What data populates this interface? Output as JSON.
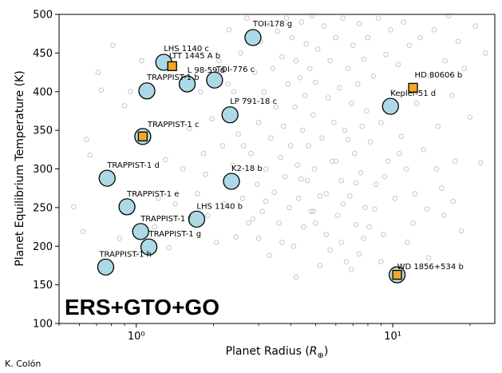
{
  "chart_data": {
    "type": "scatter",
    "title": "",
    "xlabel": "Planet Radius (R⊕)",
    "ylabel": "Planet Equilibrium Temperature (K)",
    "x_scale": "log",
    "xlim": [
      0.5,
      25
    ],
    "ylim": [
      100,
      500
    ],
    "x_ticks": [
      1,
      10
    ],
    "x_tick_labels": [
      "10⁰",
      "10¹"
    ],
    "y_ticks": [
      100,
      150,
      200,
      250,
      300,
      350,
      400,
      450,
      500
    ],
    "y_tick_labels": [
      "100",
      "150",
      "200",
      "250",
      "300",
      "350",
      "400",
      "450",
      "500"
    ],
    "grid": false,
    "overlay_label": "ERS+GTO+GO",
    "credit": "K. Colón",
    "colors": {
      "circle_fill": "#add8e6",
      "square_fill": "#f5a623",
      "background_points": "#c8c8c8"
    },
    "labeled_planets": [
      {
        "name": "TOI-178 g",
        "x": 2.85,
        "y": 470,
        "marker": "circle"
      },
      {
        "name": "LHS 1140 c",
        "x": 1.28,
        "y": 438,
        "marker": "circle"
      },
      {
        "name": "LTT 1445 A b",
        "x": 1.38,
        "y": 433,
        "marker": "square"
      },
      {
        "name": "L 98-59 d",
        "x": 1.58,
        "y": 410,
        "marker": "circle"
      },
      {
        "name": "TOI-776 c",
        "x": 2.02,
        "y": 415,
        "marker": "circle"
      },
      {
        "name": "TRAPPIST-1 b",
        "x": 1.1,
        "y": 401,
        "marker": "circle"
      },
      {
        "name": "LP 791-18 c",
        "x": 2.32,
        "y": 370,
        "marker": "circle"
      },
      {
        "name": "TRAPPIST-1 c",
        "x": 1.06,
        "y": 342,
        "marker": "circle"
      },
      {
        "name": "TRAPPIST-1 c",
        "x": 1.06,
        "y": 342,
        "marker": "square"
      },
      {
        "name": "TRAPPIST-1 d",
        "x": 0.77,
        "y": 288,
        "marker": "circle"
      },
      {
        "name": "K2-18 b",
        "x": 2.35,
        "y": 284,
        "marker": "circle"
      },
      {
        "name": "TRAPPIST-1 e",
        "x": 0.92,
        "y": 251,
        "marker": "circle"
      },
      {
        "name": "LHS 1140 b",
        "x": 1.72,
        "y": 235,
        "marker": "circle"
      },
      {
        "name": "TRAPPIST-1 f",
        "x": 1.04,
        "y": 219,
        "marker": "circle"
      },
      {
        "name": "TRAPPIST-1 g",
        "x": 1.12,
        "y": 199,
        "marker": "circle"
      },
      {
        "name": "TRAPPIST-1 h",
        "x": 0.76,
        "y": 173,
        "marker": "circle"
      },
      {
        "name": "HD 80606 b",
        "x": 12.0,
        "y": 405,
        "marker": "square"
      },
      {
        "name": "Kepler-51 d",
        "x": 9.8,
        "y": 381,
        "marker": "circle"
      },
      {
        "name": "WD 1856+534 b",
        "x": 10.4,
        "y": 163,
        "marker": "circle"
      },
      {
        "name": "WD 1856+534 b",
        "x": 10.4,
        "y": 163,
        "marker": "square"
      }
    ],
    "labels": [
      {
        "text": "TOI-178 g",
        "x": 2.85,
        "y": 470,
        "dx": 0,
        "dy": -14
      },
      {
        "text": "LHS 1140 c",
        "x": 1.28,
        "y": 438,
        "dx": 0,
        "dy": -14
      },
      {
        "text": "LTT 1445 A b",
        "x": 1.38,
        "y": 433,
        "dx": -4,
        "dy": -10
      },
      {
        "text": "L 98-59 d",
        "x": 1.58,
        "y": 410,
        "dx": 0,
        "dy": -14
      },
      {
        "text": "TOI-776 c",
        "x": 2.02,
        "y": 415,
        "dx": 2,
        "dy": -10
      },
      {
        "text": "TRAPPIST-1 b",
        "x": 1.1,
        "y": 401,
        "dx": 0,
        "dy": -14
      },
      {
        "text": "LP 791-18 c",
        "x": 2.32,
        "y": 370,
        "dx": 0,
        "dy": -14
      },
      {
        "text": "TRAPPIST-1 c",
        "x": 1.06,
        "y": 342,
        "dx": 6,
        "dy": -12
      },
      {
        "text": "TRAPPIST-1 d",
        "x": 0.77,
        "y": 288,
        "dx": 0,
        "dy": -13
      },
      {
        "text": "K2-18 b",
        "x": 2.35,
        "y": 284,
        "dx": 0,
        "dy": -13
      },
      {
        "text": "TRAPPIST-1 e",
        "x": 0.92,
        "y": 251,
        "dx": 0,
        "dy": -13
      },
      {
        "text": "LHS 1140 b",
        "x": 1.72,
        "y": 235,
        "dx": 0,
        "dy": -13
      },
      {
        "text": "TRAPPIST-1 f",
        "x": 1.04,
        "y": 219,
        "dx": 0,
        "dy": -13
      },
      {
        "text": "TRAPPIST-1 g",
        "x": 1.12,
        "y": 199,
        "dx": 0,
        "dy": -13
      },
      {
        "text": "TRAPPIST-1 h",
        "x": 0.76,
        "y": 173,
        "dx": -8,
        "dy": -13
      },
      {
        "text": "HD 80606 b",
        "x": 12.0,
        "y": 405,
        "dx": 2,
        "dy": -13
      },
      {
        "text": "Kepler-51 d",
        "x": 9.8,
        "y": 381,
        "dx": 0,
        "dy": -13
      },
      {
        "text": "WD 1856+534 b",
        "x": 10.4,
        "y": 163,
        "dx": 0,
        "dy": -7
      }
    ],
    "background_points": [
      [
        0.57,
        251
      ],
      [
        0.62,
        219
      ],
      [
        0.64,
        338
      ],
      [
        0.66,
        318
      ],
      [
        0.71,
        425
      ],
      [
        0.73,
        402
      ],
      [
        0.81,
        460
      ],
      [
        0.86,
        210
      ],
      [
        0.9,
        382
      ],
      [
        0.95,
        400
      ],
      [
        1.0,
        190
      ],
      [
        1.05,
        440
      ],
      [
        1.18,
        225
      ],
      [
        1.22,
        262
      ],
      [
        1.3,
        312
      ],
      [
        1.34,
        198
      ],
      [
        1.42,
        255
      ],
      [
        1.52,
        300
      ],
      [
        1.61,
        352
      ],
      [
        1.68,
        452
      ],
      [
        1.73,
        268
      ],
      [
        1.78,
        400
      ],
      [
        1.83,
        320
      ],
      [
        1.86,
        293
      ],
      [
        1.9,
        240
      ],
      [
        1.97,
        365
      ],
      [
        2.05,
        205
      ],
      [
        2.1,
        440
      ],
      [
        2.17,
        330
      ],
      [
        2.2,
        255
      ],
      [
        2.28,
        410
      ],
      [
        2.3,
        480
      ],
      [
        2.38,
        305
      ],
      [
        2.45,
        212
      ],
      [
        2.5,
        345
      ],
      [
        2.55,
        450
      ],
      [
        2.6,
        262
      ],
      [
        2.65,
        390
      ],
      [
        2.7,
        495
      ],
      [
        2.74,
        230
      ],
      [
        2.8,
        320
      ],
      [
        2.9,
        425
      ],
      [
        2.96,
        280
      ],
      [
        3.0,
        360
      ],
      [
        3.05,
        465
      ],
      [
        3.1,
        245
      ],
      [
        3.15,
        400
      ],
      [
        3.2,
        300
      ],
      [
        3.25,
        488
      ],
      [
        3.3,
        188
      ],
      [
        3.35,
        340
      ],
      [
        3.4,
        430
      ],
      [
        3.45,
        270
      ],
      [
        3.5,
        380
      ],
      [
        3.55,
        478
      ],
      [
        3.6,
        230
      ],
      [
        3.65,
        315
      ],
      [
        3.7,
        445
      ],
      [
        3.75,
        355
      ],
      [
        3.8,
        290
      ],
      [
        3.85,
        495
      ],
      [
        3.9,
        410
      ],
      [
        3.95,
        250
      ],
      [
        4.0,
        330
      ],
      [
        4.05,
        470
      ],
      [
        4.1,
        200
      ],
      [
        4.15,
        380
      ],
      [
        4.2,
        440
      ],
      [
        4.25,
        305
      ],
      [
        4.3,
        262
      ],
      [
        4.35,
        418
      ],
      [
        4.4,
        490
      ],
      [
        4.45,
        350
      ],
      [
        4.5,
        225
      ],
      [
        4.55,
        395
      ],
      [
        4.6,
        462
      ],
      [
        4.65,
        285
      ],
      [
        4.7,
        330
      ],
      [
        4.75,
        430
      ],
      [
        4.8,
        245
      ],
      [
        4.85,
        498
      ],
      [
        4.9,
        370
      ],
      [
        4.95,
        300
      ],
      [
        5.0,
        412
      ],
      [
        5.1,
        455
      ],
      [
        5.2,
        265
      ],
      [
        5.3,
        340
      ],
      [
        5.4,
        485
      ],
      [
        5.5,
        215
      ],
      [
        5.6,
        392
      ],
      [
        5.7,
        440
      ],
      [
        5.8,
        310
      ],
      [
        5.9,
        360
      ],
      [
        6.0,
        470
      ],
      [
        6.1,
        240
      ],
      [
        6.2,
        405
      ],
      [
        6.3,
        285
      ],
      [
        6.4,
        495
      ],
      [
        6.5,
        350
      ],
      [
        6.6,
        180
      ],
      [
        6.7,
        430
      ],
      [
        6.8,
        265
      ],
      [
        6.9,
        385
      ],
      [
        7.0,
        460
      ],
      [
        7.1,
        320
      ],
      [
        7.2,
        228
      ],
      [
        7.3,
        410
      ],
      [
        7.4,
        488
      ],
      [
        7.5,
        295
      ],
      [
        7.6,
        355
      ],
      [
        7.7,
        442
      ],
      [
        7.8,
        250
      ],
      [
        7.9,
        375
      ],
      [
        8.0,
        470
      ],
      [
        8.2,
        335
      ],
      [
        8.4,
        420
      ],
      [
        8.6,
        280
      ],
      [
        8.8,
        495
      ],
      [
        9.0,
        360
      ],
      [
        9.2,
        215
      ],
      [
        9.4,
        448
      ],
      [
        9.6,
        310
      ],
      [
        9.8,
        480
      ],
      [
        10.0,
        400
      ],
      [
        10.2,
        262
      ],
      [
        10.5,
        435
      ],
      [
        10.8,
        342
      ],
      [
        11.0,
        490
      ],
      [
        11.3,
        300
      ],
      [
        11.6,
        460
      ],
      [
        12.0,
        230
      ],
      [
        12.4,
        385
      ],
      [
        12.8,
        470
      ],
      [
        13.2,
        325
      ],
      [
        13.6,
        248
      ],
      [
        14.0,
        420
      ],
      [
        14.5,
        480
      ],
      [
        15.0,
        355
      ],
      [
        15.5,
        275
      ],
      [
        16.0,
        440
      ],
      [
        16.5,
        498
      ],
      [
        17.0,
        395
      ],
      [
        17.5,
        310
      ],
      [
        18.0,
        465
      ],
      [
        18.5,
        220
      ],
      [
        19.0,
        430
      ],
      [
        20.0,
        367
      ],
      [
        21.0,
        485
      ],
      [
        22.0,
        308
      ],
      [
        23.0,
        450
      ],
      [
        4.2,
        160
      ],
      [
        5.2,
        175
      ],
      [
        6.3,
        205
      ],
      [
        7.4,
        190
      ],
      [
        8.1,
        225
      ],
      [
        5.7,
        195
      ],
      [
        6.9,
        170
      ],
      [
        3.7,
        205
      ],
      [
        4.9,
        245
      ],
      [
        6.0,
        310
      ],
      [
        7.2,
        282
      ],
      [
        3.2,
        258
      ],
      [
        2.85,
        235
      ],
      [
        2.62,
        330
      ],
      [
        2.4,
        400
      ],
      [
        4.4,
        287
      ],
      [
        5.5,
        268
      ],
      [
        6.7,
        338
      ],
      [
        8.5,
        248
      ],
      [
        9.3,
        290
      ],
      [
        10.6,
        320
      ],
      [
        12.2,
        268
      ],
      [
        14.8,
        300
      ],
      [
        17.2,
        258
      ],
      [
        3.0,
        210
      ],
      [
        5.0,
        230
      ],
      [
        6.4,
        255
      ],
      [
        7.7,
        210
      ],
      [
        9.0,
        180
      ],
      [
        11.4,
        205
      ],
      [
        13.8,
        185
      ],
      [
        15.8,
        240
      ]
    ]
  }
}
